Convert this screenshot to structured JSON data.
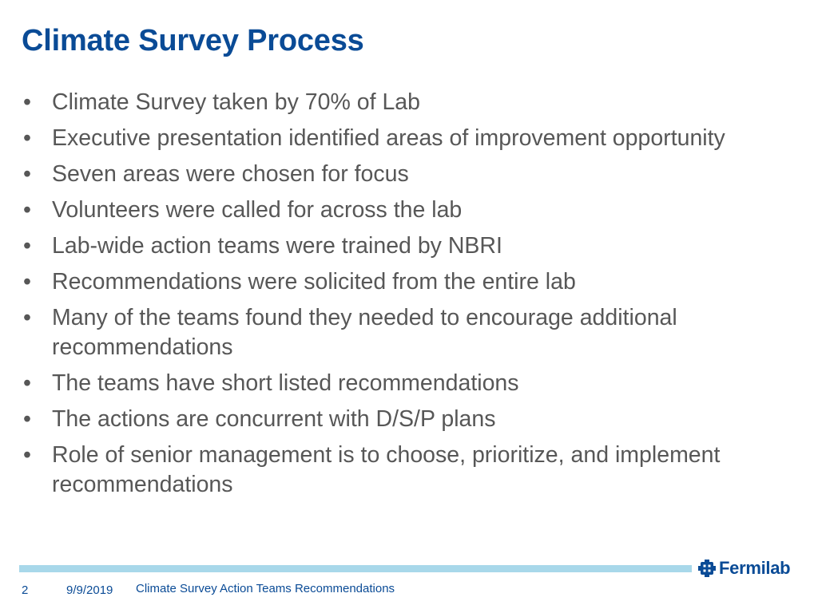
{
  "slide": {
    "title": "Climate Survey Process",
    "bullet_glyph": "•",
    "bullets": [
      "Climate Survey taken by 70% of Lab",
      "Executive presentation identified areas of improvement opportunity",
      "Seven areas were chosen for focus",
      "Volunteers were called for across the lab",
      "Lab-wide action teams were trained by NBRI",
      "Recommendations were solicited from the entire lab",
      "Many of the teams found they needed to encourage additional recommendations",
      "The teams have short listed recommendations",
      "The actions are concurrent with D/S/P plans",
      "Role of senior management is to choose, prioritize, and implement recommendations"
    ]
  },
  "footer": {
    "page_number": "2",
    "date": "9/9/2019",
    "presentation_title": "Climate Survey Action Teams Recommendations",
    "logo_text": "Fermilab",
    "logo_icon": "fermilab-logo-icon"
  },
  "colors": {
    "title": "#0a4b96",
    "body_text": "#575757",
    "footer_bar": "#a8d8ea",
    "footer_text": "#0a4b96"
  }
}
